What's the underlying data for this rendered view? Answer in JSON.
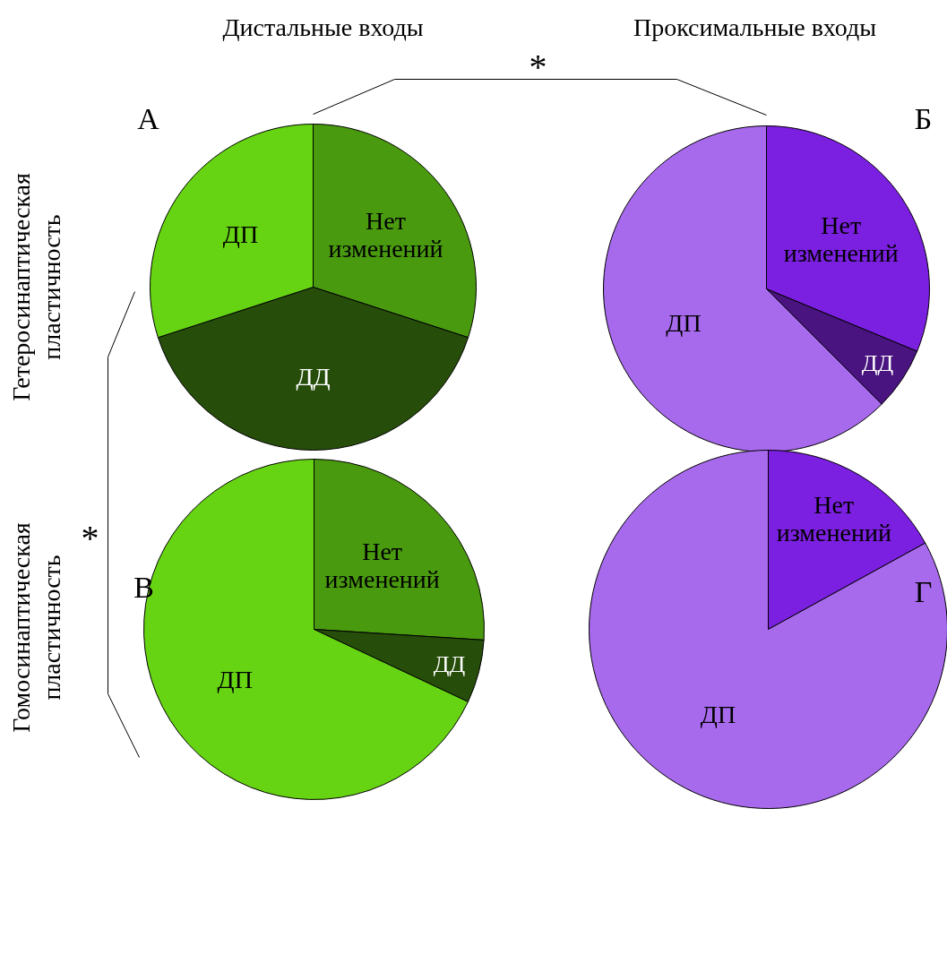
{
  "chart_data": [
    {
      "type": "pie",
      "title": "А",
      "categories": [
        "Нет изменений",
        "ДД",
        "ДП"
      ],
      "values": [
        30,
        40,
        30
      ],
      "colors": [
        "#4a9a10",
        "#264d0a",
        "#66d412"
      ],
      "annotations": [
        "Дистальные входы",
        "Гетеросинаптическая пластичность",
        "*",
        "*"
      ]
    },
    {
      "type": "pie",
      "title": "Б",
      "categories": [
        "Нет изменений",
        "ДД",
        "ДП"
      ],
      "values": [
        31.25,
        6.25,
        62.5
      ],
      "colors": [
        "#7b1fe0",
        "#4a1480",
        "#a86aec"
      ],
      "annotations": [
        "Проксимальные входы"
      ]
    },
    {
      "type": "pie",
      "title": "В",
      "categories": [
        "Нет изменений",
        "ДД",
        "ДП"
      ],
      "values": [
        26,
        6,
        68
      ],
      "colors": [
        "#4a9a10",
        "#264d0a",
        "#66d412"
      ],
      "annotations": [
        "Гомосинаптическая пластичность"
      ]
    },
    {
      "type": "pie",
      "title": "Г",
      "categories": [
        "Нет изменений",
        "ДП"
      ],
      "values": [
        17,
        83
      ],
      "colors": [
        "#7b1fe0",
        "#a86aec"
      ]
    }
  ]
}
